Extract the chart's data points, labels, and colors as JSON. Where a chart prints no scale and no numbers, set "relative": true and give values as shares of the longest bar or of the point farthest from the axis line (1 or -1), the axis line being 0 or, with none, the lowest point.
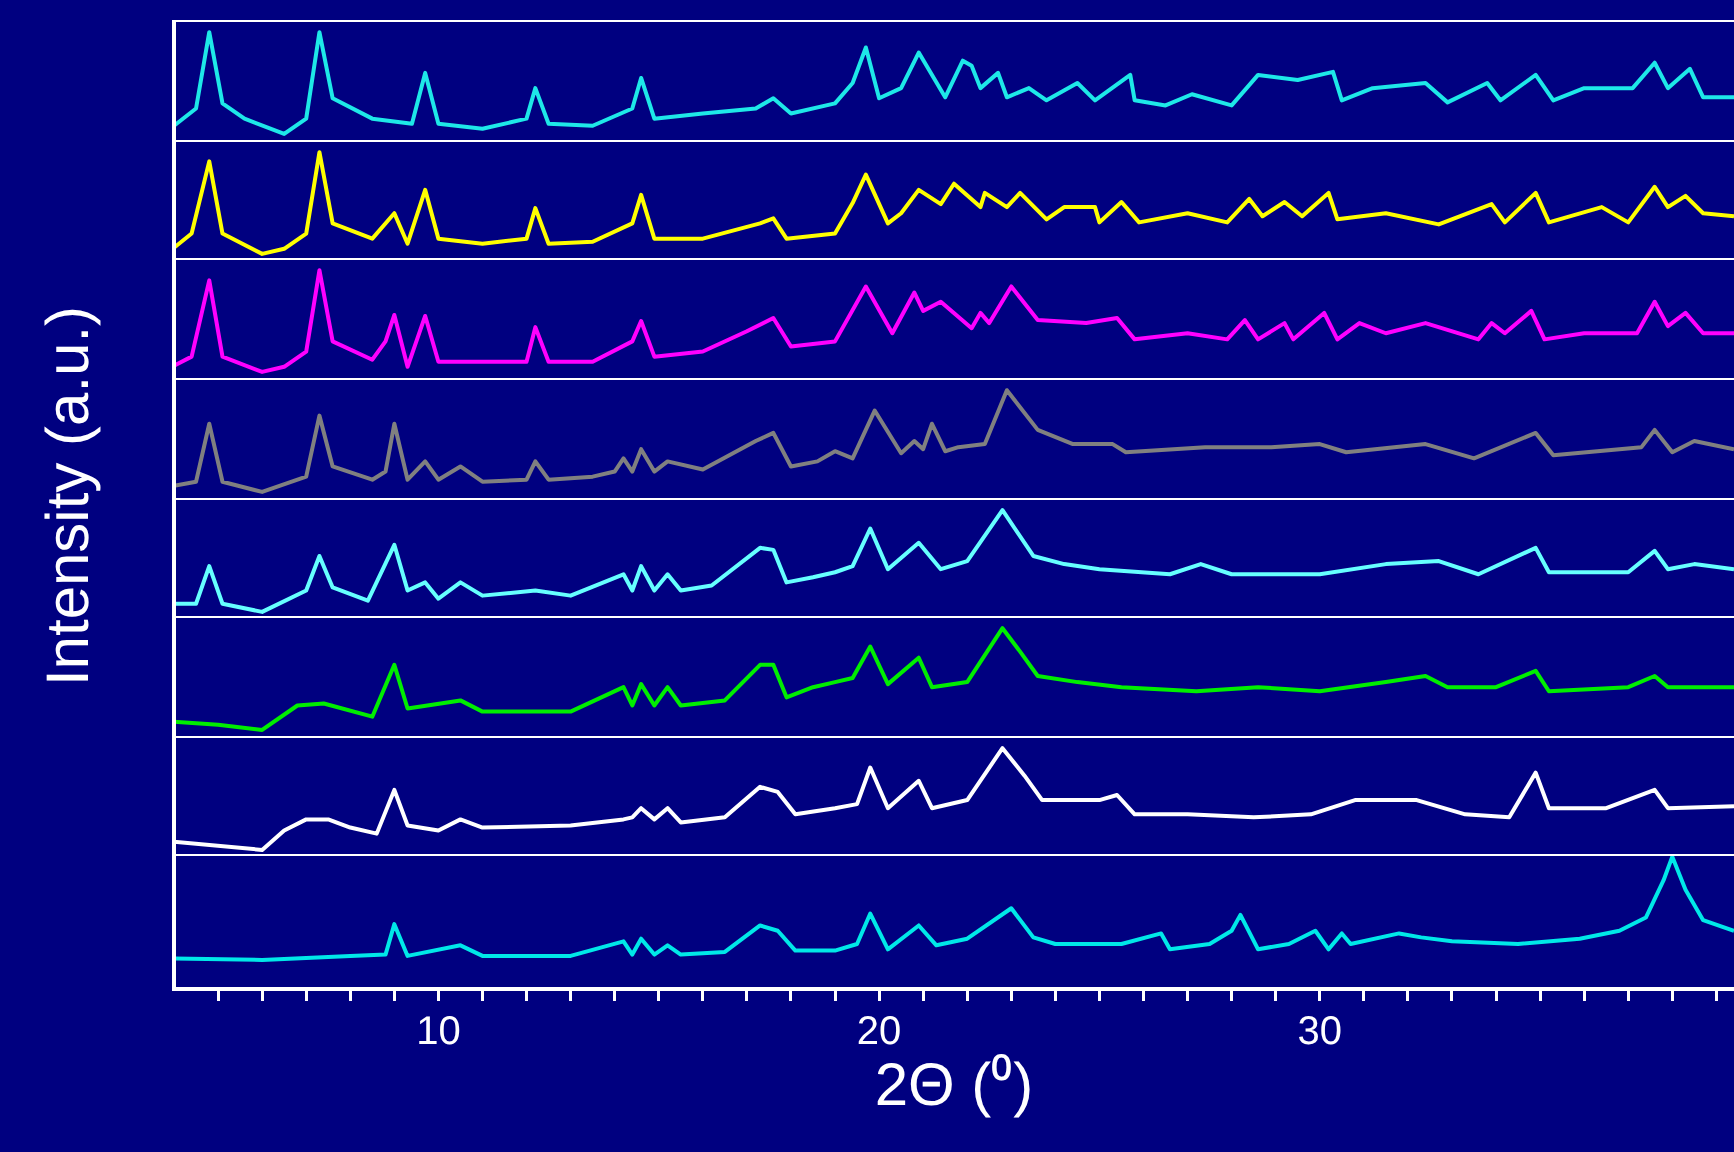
{
  "chart_data": [
    {
      "type": "line",
      "relative": true,
      "color": "#1ee8e8",
      "xlim": [
        4,
        39.4
      ],
      "tick_labels": false,
      "x": [
        4.0,
        4.5,
        4.8,
        5.1,
        5.6,
        6.5,
        7.0,
        7.3,
        7.6,
        8.5,
        9.4,
        9.7,
        10.0,
        11.0,
        12.0,
        12.2,
        12.5,
        13.5,
        14.4,
        14.6,
        14.9,
        16.0,
        17.2,
        17.6,
        18.0,
        19.0,
        19.4,
        19.7,
        20.0,
        20.5,
        20.9,
        21.5,
        21.9,
        22.1,
        22.3,
        22.7,
        22.9,
        23.4,
        23.8,
        24.5,
        24.9,
        25.7,
        25.8,
        26.5,
        27.1,
        28.0,
        28.6,
        29.5,
        30.3,
        30.5,
        31.2,
        32.4,
        32.9,
        33.8,
        34.1,
        34.9,
        35.3,
        36.0,
        37.1,
        37.6,
        37.9,
        38.4,
        38.7,
        39.4
      ],
      "values": [
        0.08,
        0.25,
        1.0,
        0.3,
        0.15,
        0.0,
        0.15,
        1.0,
        0.35,
        0.15,
        0.1,
        0.6,
        0.1,
        0.05,
        0.15,
        0.45,
        0.1,
        0.08,
        0.25,
        0.55,
        0.15,
        0.2,
        0.25,
        0.35,
        0.2,
        0.3,
        0.5,
        0.85,
        0.35,
        0.45,
        0.8,
        0.36,
        0.72,
        0.67,
        0.45,
        0.6,
        0.36,
        0.45,
        0.33,
        0.5,
        0.33,
        0.58,
        0.33,
        0.28,
        0.39,
        0.28,
        0.58,
        0.53,
        0.61,
        0.33,
        0.45,
        0.5,
        0.31,
        0.5,
        0.33,
        0.58,
        0.33,
        0.45,
        0.45,
        0.7,
        0.45,
        0.64,
        0.36,
        0.36
      ]
    },
    {
      "type": "line",
      "relative": true,
      "color": "#ffff00",
      "xlim": [
        4,
        39.4
      ],
      "tick_labels": false,
      "x": [
        4.0,
        4.4,
        4.8,
        5.1,
        6.0,
        6.5,
        7.0,
        7.3,
        7.6,
        8.5,
        9.0,
        9.3,
        9.7,
        10.0,
        11.0,
        12.0,
        12.2,
        12.5,
        13.5,
        14.4,
        14.6,
        14.9,
        16.0,
        17.3,
        17.6,
        17.9,
        19.0,
        19.4,
        19.7,
        20.2,
        20.5,
        20.9,
        21.4,
        21.7,
        22.3,
        22.4,
        22.9,
        23.2,
        23.8,
        24.2,
        24.9,
        25.0,
        25.5,
        25.9,
        27.0,
        27.9,
        28.4,
        28.7,
        29.2,
        29.6,
        30.2,
        30.4,
        31.5,
        32.7,
        33.9,
        34.2,
        34.9,
        35.2,
        36.4,
        37.0,
        37.6,
        37.9,
        38.3,
        38.7,
        39.4
      ],
      "values": [
        0.06,
        0.2,
        0.91,
        0.2,
        0.0,
        0.05,
        0.2,
        1.0,
        0.3,
        0.15,
        0.4,
        0.1,
        0.63,
        0.15,
        0.1,
        0.15,
        0.45,
        0.1,
        0.12,
        0.3,
        0.58,
        0.15,
        0.15,
        0.3,
        0.35,
        0.15,
        0.2,
        0.5,
        0.78,
        0.3,
        0.4,
        0.63,
        0.49,
        0.69,
        0.46,
        0.6,
        0.46,
        0.6,
        0.34,
        0.46,
        0.46,
        0.31,
        0.51,
        0.31,
        0.4,
        0.31,
        0.54,
        0.37,
        0.51,
        0.37,
        0.6,
        0.34,
        0.4,
        0.29,
        0.49,
        0.31,
        0.6,
        0.31,
        0.46,
        0.31,
        0.66,
        0.46,
        0.57,
        0.4,
        0.37
      ]
    },
    {
      "type": "line",
      "relative": true,
      "color": "#ff00ff",
      "xlim": [
        4,
        39.4
      ],
      "tick_labels": false,
      "x": [
        4.0,
        4.4,
        4.8,
        5.1,
        6.0,
        6.5,
        7.0,
        7.3,
        7.6,
        8.5,
        8.8,
        9.0,
        9.3,
        9.7,
        10.0,
        11.0,
        12.0,
        12.2,
        12.5,
        13.5,
        14.4,
        14.6,
        14.9,
        16.0,
        17.0,
        17.6,
        18.0,
        19.0,
        19.7,
        20.3,
        20.8,
        21.0,
        21.4,
        22.1,
        22.3,
        22.5,
        23.0,
        23.6,
        24.7,
        25.4,
        25.8,
        27.0,
        27.9,
        28.3,
        28.6,
        29.2,
        29.4,
        30.1,
        30.4,
        30.9,
        31.5,
        32.4,
        33.6,
        33.9,
        34.2,
        34.8,
        35.1,
        36.0,
        37.2,
        37.6,
        37.9,
        38.3,
        38.7,
        39.4
      ],
      "values": [
        0.06,
        0.15,
        0.9,
        0.15,
        0.0,
        0.05,
        0.2,
        1.0,
        0.3,
        0.12,
        0.3,
        0.56,
        0.05,
        0.55,
        0.1,
        0.1,
        0.1,
        0.44,
        0.1,
        0.1,
        0.3,
        0.5,
        0.15,
        0.2,
        0.4,
        0.53,
        0.25,
        0.3,
        0.84,
        0.38,
        0.78,
        0.6,
        0.69,
        0.43,
        0.58,
        0.48,
        0.84,
        0.51,
        0.48,
        0.53,
        0.32,
        0.38,
        0.32,
        0.51,
        0.32,
        0.48,
        0.32,
        0.58,
        0.32,
        0.48,
        0.38,
        0.48,
        0.32,
        0.48,
        0.38,
        0.6,
        0.32,
        0.38,
        0.38,
        0.69,
        0.45,
        0.58,
        0.38,
        0.38
      ]
    },
    {
      "type": "line",
      "relative": true,
      "color": "#808080",
      "xlim": [
        4,
        39.4
      ],
      "tick_labels": false,
      "ylabel": "Intensity (a.u.)",
      "x": [
        4.0,
        4.5,
        4.8,
        5.1,
        6.0,
        7.0,
        7.3,
        7.6,
        8.5,
        8.8,
        9.0,
        9.3,
        9.7,
        10.0,
        10.5,
        11.0,
        12.0,
        12.2,
        12.5,
        13.5,
        14.0,
        14.2,
        14.4,
        14.6,
        14.9,
        15.2,
        16.0,
        17.2,
        17.6,
        18.0,
        18.6,
        19.0,
        19.4,
        19.9,
        20.5,
        20.8,
        21.0,
        21.2,
        21.5,
        21.8,
        22.4,
        22.9,
        23.6,
        24.4,
        25.3,
        25.6,
        27.4,
        28.2,
        28.9,
        30.0,
        30.6,
        32.4,
        33.5,
        34.9,
        35.3,
        37.3,
        37.6,
        38.0,
        38.5,
        39.4
      ],
      "values": [
        0.06,
        0.1,
        0.67,
        0.1,
        0.0,
        0.15,
        0.75,
        0.25,
        0.12,
        0.2,
        0.67,
        0.12,
        0.3,
        0.12,
        0.25,
        0.1,
        0.12,
        0.3,
        0.12,
        0.15,
        0.2,
        0.33,
        0.2,
        0.42,
        0.2,
        0.3,
        0.22,
        0.5,
        0.58,
        0.25,
        0.3,
        0.4,
        0.33,
        0.8,
        0.38,
        0.5,
        0.42,
        0.67,
        0.4,
        0.44,
        0.47,
        1.0,
        0.61,
        0.47,
        0.47,
        0.39,
        0.44,
        0.44,
        0.44,
        0.47,
        0.39,
        0.47,
        0.33,
        0.58,
        0.36,
        0.44,
        0.61,
        0.39,
        0.5,
        0.42
      ]
    },
    {
      "type": "line",
      "relative": true,
      "color": "#66ffff",
      "xlim": [
        4,
        39.4
      ],
      "tick_labels": false,
      "x": [
        4.0,
        4.5,
        4.8,
        5.1,
        6.0,
        7.0,
        7.3,
        7.6,
        8.4,
        9.0,
        9.3,
        9.7,
        10.0,
        10.5,
        11.0,
        12.2,
        13.0,
        14.2,
        14.4,
        14.6,
        14.9,
        15.2,
        15.5,
        16.2,
        17.3,
        17.6,
        17.9,
        18.5,
        19.0,
        19.4,
        19.8,
        20.2,
        20.9,
        21.4,
        22.0,
        22.8,
        23.5,
        24.2,
        25.0,
        26.6,
        27.3,
        28.0,
        30.0,
        31.5,
        32.7,
        33.6,
        34.9,
        35.2,
        37.0,
        37.6,
        37.9,
        38.5,
        39.4
      ],
      "values": [
        0.08,
        0.08,
        0.45,
        0.08,
        0.0,
        0.21,
        0.55,
        0.24,
        0.11,
        0.66,
        0.21,
        0.29,
        0.13,
        0.29,
        0.16,
        0.21,
        0.16,
        0.37,
        0.21,
        0.45,
        0.21,
        0.37,
        0.21,
        0.26,
        0.63,
        0.61,
        0.29,
        0.34,
        0.39,
        0.45,
        0.82,
        0.42,
        0.68,
        0.42,
        0.5,
        1.0,
        0.55,
        0.47,
        0.42,
        0.37,
        0.47,
        0.37,
        0.37,
        0.47,
        0.5,
        0.37,
        0.63,
        0.39,
        0.39,
        0.6,
        0.42,
        0.47,
        0.42
      ]
    },
    {
      "type": "line",
      "relative": true,
      "color": "#00ee00",
      "xlim": [
        4,
        39.4
      ],
      "tick_labels": false,
      "x": [
        4.0,
        5.0,
        6.0,
        6.8,
        7.4,
        8.5,
        9.0,
        9.3,
        10.5,
        11.0,
        13.0,
        14.2,
        14.4,
        14.6,
        14.9,
        15.2,
        15.5,
        16.5,
        17.3,
        17.6,
        17.9,
        18.5,
        19.0,
        19.4,
        19.8,
        20.2,
        20.9,
        21.2,
        22.0,
        22.8,
        23.2,
        23.6,
        24.5,
        25.5,
        27.2,
        28.6,
        30.0,
        31.5,
        32.4,
        32.9,
        34.0,
        34.9,
        35.2,
        37.0,
        37.6,
        37.9,
        39.4
      ],
      "values": [
        0.08,
        0.05,
        0.0,
        0.24,
        0.26,
        0.13,
        0.64,
        0.21,
        0.29,
        0.18,
        0.18,
        0.42,
        0.24,
        0.45,
        0.24,
        0.42,
        0.24,
        0.29,
        0.64,
        0.64,
        0.32,
        0.42,
        0.47,
        0.51,
        0.82,
        0.45,
        0.71,
        0.42,
        0.47,
        1.0,
        0.77,
        0.53,
        0.47,
        0.42,
        0.38,
        0.42,
        0.38,
        0.47,
        0.53,
        0.42,
        0.42,
        0.58,
        0.38,
        0.42,
        0.53,
        0.42,
        0.42
      ]
    },
    {
      "type": "line",
      "relative": true,
      "color": "#ffffff",
      "xlim": [
        4,
        39.4
      ],
      "tick_labels": false,
      "x": [
        4.0,
        6.0,
        6.5,
        7.0,
        7.5,
        8.0,
        8.6,
        9.0,
        9.3,
        10.0,
        10.5,
        11.0,
        13.0,
        14.2,
        14.4,
        14.6,
        14.9,
        15.2,
        15.5,
        16.5,
        17.3,
        17.7,
        18.1,
        19.0,
        19.5,
        19.8,
        20.2,
        20.9,
        21.2,
        22.0,
        22.8,
        23.3,
        23.7,
        25.0,
        25.4,
        25.8,
        27.0,
        28.5,
        29.8,
        30.8,
        32.2,
        33.3,
        34.3,
        34.9,
        35.2,
        36.5,
        37.6,
        37.9,
        39.4
      ],
      "values": [
        0.08,
        0.0,
        0.19,
        0.3,
        0.3,
        0.22,
        0.16,
        0.59,
        0.24,
        0.19,
        0.3,
        0.22,
        0.24,
        0.3,
        0.32,
        0.41,
        0.3,
        0.41,
        0.27,
        0.32,
        0.62,
        0.57,
        0.35,
        0.41,
        0.45,
        0.81,
        0.41,
        0.68,
        0.41,
        0.49,
        1.0,
        0.73,
        0.49,
        0.49,
        0.54,
        0.35,
        0.35,
        0.32,
        0.35,
        0.49,
        0.49,
        0.35,
        0.32,
        0.76,
        0.41,
        0.41,
        0.59,
        0.41,
        0.43
      ]
    },
    {
      "type": "line",
      "relative": true,
      "color": "#00e8e8",
      "xlim": [
        4,
        39.4
      ],
      "tick_labels": "x",
      "xlabel": "2Θ (⁰)",
      "xticks": [
        {
          "value": 5,
          "label": null
        },
        {
          "value": 6,
          "label": null
        },
        {
          "value": 7,
          "label": null
        },
        {
          "value": 8,
          "label": null
        },
        {
          "value": 9,
          "label": null
        },
        10,
        {
          "value": 11,
          "label": null
        },
        {
          "value": 12,
          "label": null
        },
        {
          "value": 13,
          "label": null
        },
        {
          "value": 14,
          "label": null
        },
        {
          "value": 15,
          "label": null
        },
        {
          "value": 16,
          "label": null
        },
        {
          "value": 17,
          "label": null
        },
        {
          "value": 18,
          "label": null
        },
        {
          "value": 19,
          "label": null
        },
        20,
        {
          "value": 21,
          "label": null
        },
        {
          "value": 22,
          "label": null
        },
        {
          "value": 23,
          "label": null
        },
        {
          "value": 24,
          "label": null
        },
        {
          "value": 25,
          "label": null
        },
        {
          "value": 26,
          "label": null
        },
        {
          "value": 27,
          "label": null
        },
        {
          "value": 28,
          "label": null
        },
        {
          "value": 29,
          "label": null
        },
        30,
        {
          "value": 31,
          "label": null
        },
        {
          "value": 32,
          "label": null
        },
        {
          "value": 33,
          "label": null
        },
        {
          "value": 34,
          "label": null
        },
        {
          "value": 35,
          "label": null
        },
        {
          "value": 36,
          "label": null
        },
        {
          "value": 37,
          "label": null
        },
        {
          "value": 38,
          "label": null
        },
        {
          "value": 39,
          "label": null
        }
      ],
      "x": [
        4.0,
        6.0,
        8.0,
        8.8,
        9.0,
        9.3,
        10.5,
        11.0,
        13.0,
        14.2,
        14.4,
        14.6,
        14.9,
        15.2,
        15.5,
        16.5,
        17.3,
        17.7,
        18.1,
        19.0,
        19.5,
        19.8,
        20.2,
        20.9,
        21.3,
        22.0,
        23.0,
        23.5,
        24.0,
        25.5,
        26.4,
        26.6,
        27.5,
        28.0,
        28.2,
        28.6,
        29.3,
        29.9,
        30.2,
        30.5,
        30.7,
        31.8,
        32.3,
        33.0,
        34.5,
        35.9,
        36.8,
        37.4,
        37.8,
        38.0,
        38.3,
        38.7,
        39.4
      ],
      "values": [
        0.23,
        0.22,
        0.25,
        0.26,
        0.49,
        0.25,
        0.33,
        0.25,
        0.25,
        0.36,
        0.26,
        0.38,
        0.26,
        0.33,
        0.26,
        0.28,
        0.48,
        0.44,
        0.29,
        0.29,
        0.34,
        0.57,
        0.3,
        0.48,
        0.33,
        0.38,
        0.61,
        0.39,
        0.34,
        0.34,
        0.42,
        0.3,
        0.34,
        0.44,
        0.56,
        0.3,
        0.34,
        0.44,
        0.3,
        0.42,
        0.34,
        0.42,
        0.39,
        0.36,
        0.34,
        0.38,
        0.44,
        0.54,
        0.82,
        1.0,
        0.75,
        0.52,
        0.44
      ]
    }
  ]
}
